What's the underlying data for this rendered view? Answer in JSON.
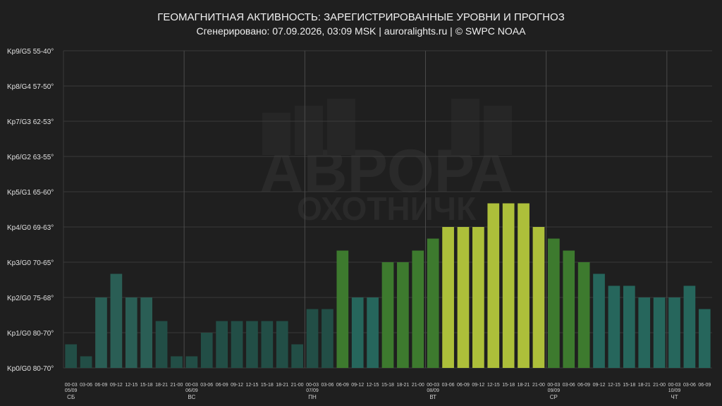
{
  "header": {
    "title": "ГЕОМАГНИТНАЯ АКТИВНОСТЬ: ЗАРЕГИСТРИРОВАННЫЕ УРОВНИ И ПРОГНОЗ",
    "subtitle": "Сгенерировано: 07.09.2026, 03:09 MSK | auroralights.ru | © SWPC NOAA"
  },
  "watermark": {
    "line1": "АВРОРА",
    "line2": "ОХОТНИЧК"
  },
  "colors": {
    "background": "#1f1f1f",
    "grid": "#3a3a3a",
    "day_separator": "#4a4a4a",
    "observed_low": "#224e46",
    "observed_kp2": "#2a5e55",
    "forecast_teal": "#26665c",
    "forecast_green": "#3d7a2e",
    "forecast_yellow": "#adbf3a"
  },
  "chart_data": {
    "type": "bar",
    "title": "ГЕОМАГНИТНАЯ АКТИВНОСТЬ: ЗАРЕГИСТРИРОВАННЫЕ УРОВНИ И ПРОГНОЗ",
    "ylim": [
      0,
      9
    ],
    "y_ticks": [
      "Kp0/G0 80-70°",
      "Kp1/G0 80-70°",
      "Kp2/G0 75-68°",
      "Kp3/G0 70-65°",
      "Kp4/G0 69-63°",
      "Kp5/G1 65-60°",
      "Kp6/G2 63-55°",
      "Kp7/G3 62-53°",
      "Kp8/G4 57-50°",
      "Kp9/G5 55-40°"
    ],
    "grid": true,
    "forecast_start_index": 18,
    "days": [
      {
        "date": "05/09",
        "weekday": "СБ",
        "start_index": 0
      },
      {
        "date": "06/09",
        "weekday": "ВС",
        "start_index": 8
      },
      {
        "date": "07/09",
        "weekday": "ПН",
        "start_index": 16
      },
      {
        "date": "08/09",
        "weekday": "ВТ",
        "start_index": 24
      },
      {
        "date": "09/09",
        "weekday": "СР",
        "start_index": 32
      },
      {
        "date": "10/09",
        "weekday": "ЧТ",
        "start_index": 40
      }
    ],
    "categories": [
      "00-03",
      "03-06",
      "06-09",
      "09-12",
      "12-15",
      "15-18",
      "18-21",
      "21-00",
      "00-03",
      "03-06",
      "06-09",
      "09-12",
      "12-15",
      "15-18",
      "18-21",
      "21-00",
      "00-03",
      "03-06",
      "06-09",
      "09-12",
      "12-15",
      "15-18",
      "18-21",
      "21-00",
      "00-03",
      "03-06",
      "06-09",
      "09-12",
      "12-15",
      "15-18",
      "18-21",
      "21-00",
      "00-03",
      "03-06",
      "06-09",
      "09-12",
      "12-15",
      "15-18",
      "18-21",
      "21-00",
      "00-03",
      "03-06",
      "06-09"
    ],
    "values": [
      0.67,
      0.33,
      2.0,
      2.67,
      2.0,
      2.0,
      1.33,
      0.33,
      0.33,
      1.0,
      1.33,
      1.33,
      1.33,
      1.33,
      1.33,
      0.67,
      1.67,
      1.67,
      3.33,
      2.0,
      2.0,
      3.0,
      3.0,
      3.33,
      3.67,
      4.0,
      4.0,
      4.0,
      4.67,
      4.67,
      4.67,
      4.0,
      3.67,
      3.33,
      3.0,
      2.67,
      2.33,
      2.33,
      2.0,
      2.0,
      2.0,
      2.33,
      1.67
    ]
  }
}
